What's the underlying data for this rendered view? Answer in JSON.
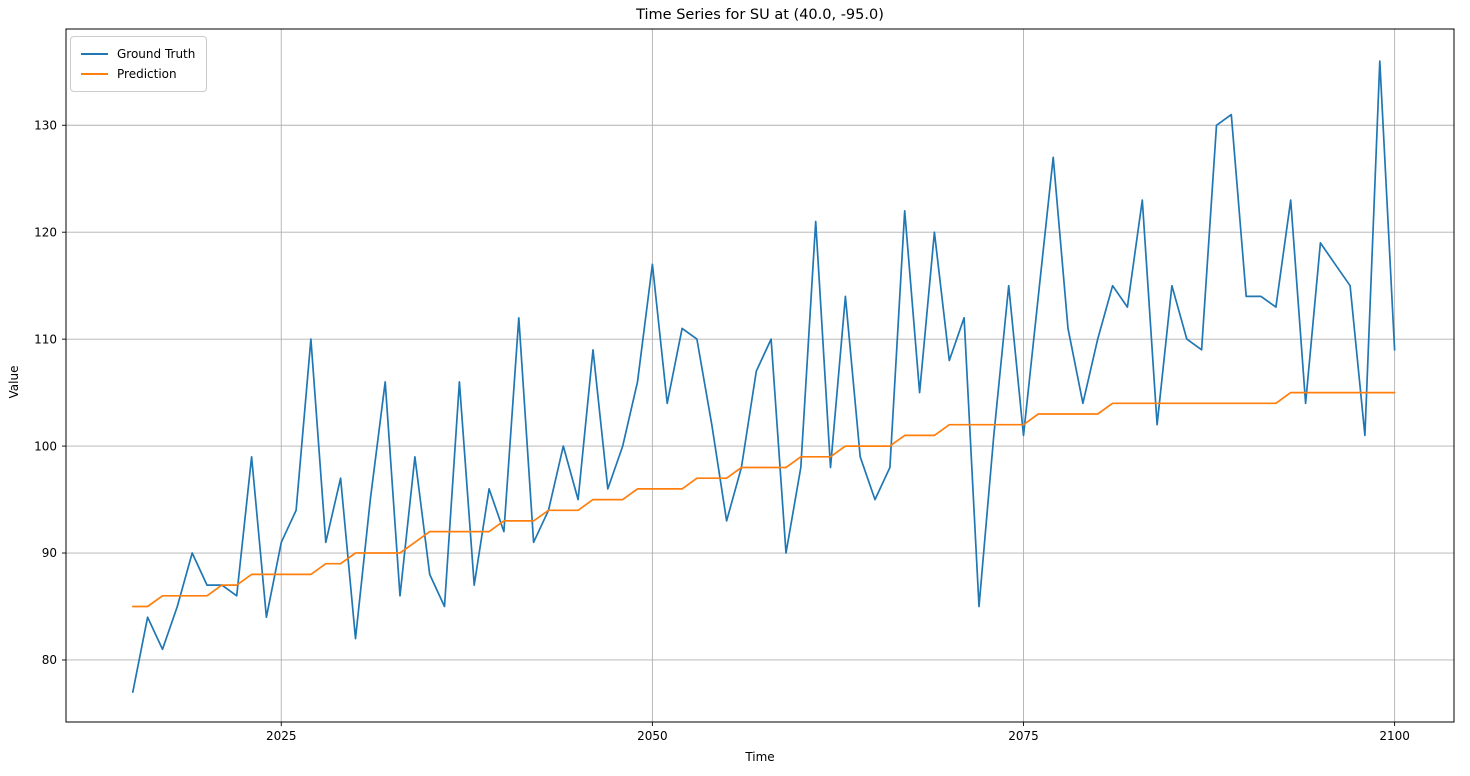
{
  "chart_data": {
    "type": "line",
    "title": "Time Series for SU at (40.0, -95.0)",
    "xlabel": "Time",
    "ylabel": "Value",
    "grid": true,
    "legend_position": "upper left",
    "xlim": [
      2010.5,
      2104.0
    ],
    "ylim": [
      74.2,
      139.0
    ],
    "xticks": [
      2025,
      2050,
      2075,
      2100
    ],
    "yticks": [
      80,
      90,
      100,
      110,
      120,
      130
    ],
    "grid_color": "#b0b0b0",
    "spine_color": "#000000",
    "x": [
      2015,
      2016,
      2017,
      2018,
      2019,
      2020,
      2021,
      2022,
      2023,
      2024,
      2025,
      2026,
      2027,
      2028,
      2029,
      2030,
      2031,
      2032,
      2033,
      2034,
      2035,
      2036,
      2037,
      2038,
      2039,
      2040,
      2041,
      2042,
      2043,
      2044,
      2045,
      2046,
      2047,
      2048,
      2049,
      2050,
      2051,
      2052,
      2053,
      2054,
      2055,
      2056,
      2057,
      2058,
      2059,
      2060,
      2061,
      2062,
      2063,
      2064,
      2065,
      2066,
      2067,
      2068,
      2069,
      2070,
      2071,
      2072,
      2073,
      2074,
      2075,
      2076,
      2077,
      2078,
      2079,
      2080,
      2081,
      2082,
      2083,
      2084,
      2085,
      2086,
      2087,
      2088,
      2089,
      2090,
      2091,
      2092,
      2093,
      2094,
      2095,
      2096,
      2097,
      2098,
      2099,
      2100
    ],
    "series": [
      {
        "name": "Ground Truth",
        "color": "#1f77b4",
        "values": [
          77,
          84,
          81,
          85,
          90,
          87,
          87,
          86,
          99,
          84,
          91,
          94,
          110,
          91,
          97,
          82,
          95,
          106,
          86,
          99,
          88,
          85,
          106,
          87,
          96,
          92,
          112,
          91,
          94,
          100,
          95,
          109,
          96,
          100,
          106,
          117,
          104,
          111,
          110,
          102,
          93,
          98,
          107,
          110,
          90,
          98,
          121,
          98,
          114,
          99,
          95,
          98,
          122,
          105,
          120,
          108,
          112,
          85,
          101,
          115,
          101,
          114,
          127,
          111,
          104,
          110,
          115,
          113,
          123,
          102,
          115,
          110,
          109,
          130,
          131,
          114,
          114,
          113,
          123,
          104,
          119,
          117,
          115,
          101,
          136,
          109
        ]
      },
      {
        "name": "Prediction",
        "color": "#ff7f0e",
        "values": [
          85,
          85,
          86,
          86,
          86,
          86,
          87,
          87,
          88,
          88,
          88,
          88,
          88,
          89,
          89,
          90,
          90,
          90,
          90,
          91,
          92,
          92,
          92,
          92,
          92,
          93,
          93,
          93,
          94,
          94,
          94,
          95,
          95,
          95,
          96,
          96,
          96,
          96,
          97,
          97,
          97,
          98,
          98,
          98,
          98,
          99,
          99,
          99,
          100,
          100,
          100,
          100,
          101,
          101,
          101,
          102,
          102,
          102,
          102,
          102,
          102,
          103,
          103,
          103,
          103,
          103,
          104,
          104,
          104,
          104,
          104,
          104,
          104,
          104,
          104,
          104,
          104,
          104,
          105,
          105,
          105,
          105,
          105,
          105,
          105,
          105
        ]
      }
    ]
  }
}
